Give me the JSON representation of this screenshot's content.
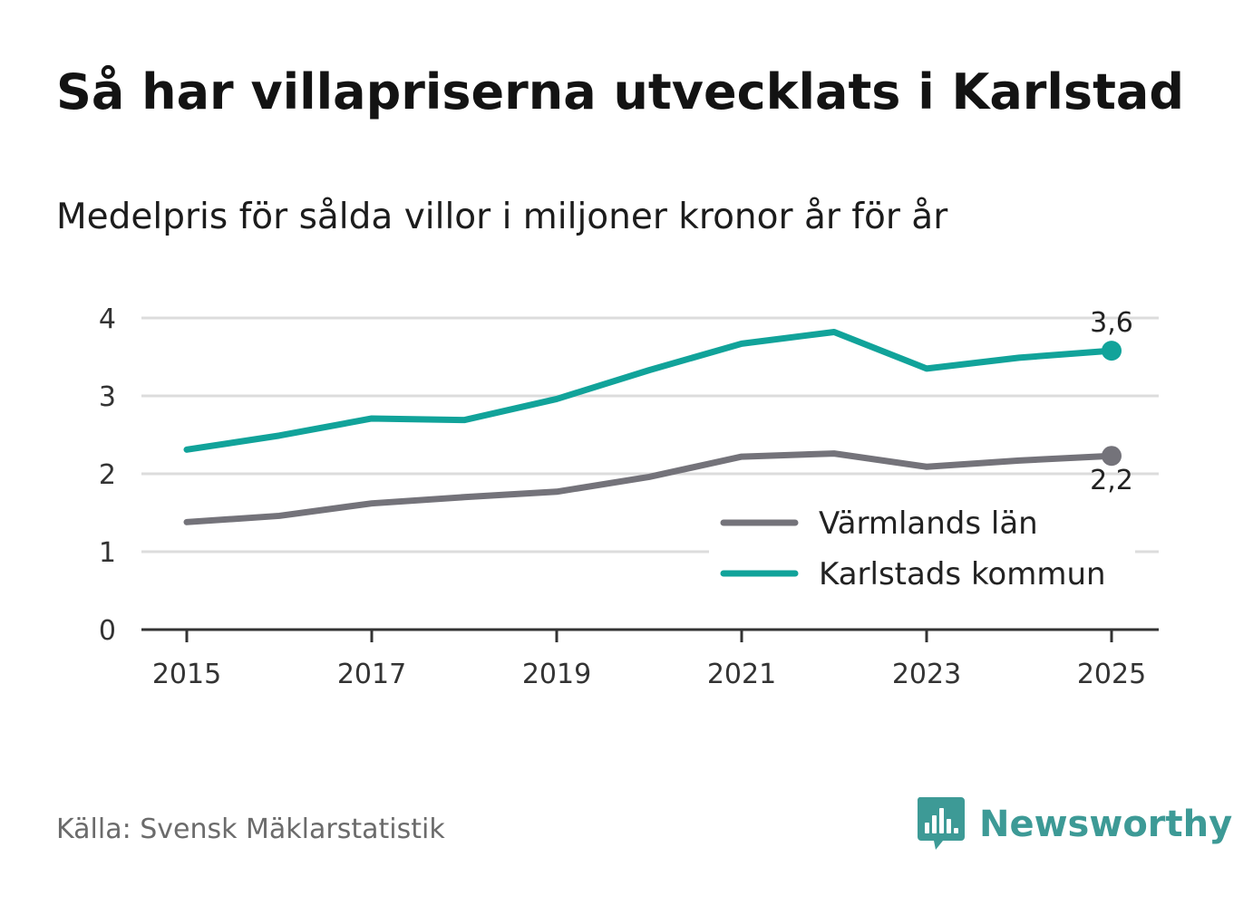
{
  "header": {
    "title": "Så har villapriserna utvecklats i Karlstad",
    "subtitle": "Medelpris för sålda villor i miljoner kronor år för år"
  },
  "footer": {
    "source": "Källa: Svensk Mäklarstatistik",
    "brand": "Newsworthy"
  },
  "colors": {
    "varmland": "#74737a",
    "karlstad": "#11a39a",
    "grid": "#dcdcdc",
    "axis": "#333333",
    "brand": "#3d9a96"
  },
  "chart_data": {
    "type": "line",
    "title": "Så har villapriserna utvecklats i Karlstad",
    "xlabel": "",
    "ylabel": "",
    "x": [
      2015,
      2016,
      2017,
      2018,
      2019,
      2020,
      2021,
      2022,
      2023,
      2024,
      2025
    ],
    "xticks": [
      "2015",
      "2017",
      "2019",
      "2021",
      "2023",
      "2025"
    ],
    "yticks": [
      "0",
      "1",
      "2",
      "3",
      "4"
    ],
    "xlim": [
      2015,
      2025
    ],
    "ylim": [
      0,
      4
    ],
    "grid": true,
    "legend_position": "bottom-right",
    "series": [
      {
        "name": "Värmlands län",
        "color": "#74737a",
        "values": [
          1.38,
          1.46,
          1.62,
          1.7,
          1.77,
          1.96,
          2.22,
          2.26,
          2.09,
          2.17,
          2.23
        ],
        "end_label": "2,2",
        "end_label_position": "below"
      },
      {
        "name": "Karlstads kommun",
        "color": "#11a39a",
        "values": [
          2.31,
          2.49,
          2.71,
          2.69,
          2.96,
          3.33,
          3.67,
          3.82,
          3.35,
          3.49,
          3.58
        ],
        "end_label": "3,6",
        "end_label_position": "above"
      }
    ]
  }
}
